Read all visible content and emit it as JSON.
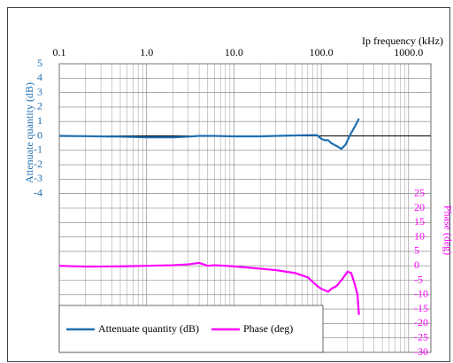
{
  "chart_data": {
    "type": "line",
    "x_label": "Ip  frequency (kHz)",
    "y_label": "Attenuate quantity (dB)",
    "y2_label": "Phase (deg)",
    "x_scale": "log",
    "xlim": [
      0.1,
      1800
    ],
    "xticks": [
      0.1,
      {
        "value": 1,
        "label": "1.0"
      },
      {
        "value": 10,
        "label": "10.0"
      },
      {
        "value": 100,
        "label": "100.0"
      },
      {
        "value": 1000,
        "label": "1000.0"
      }
    ],
    "xminorticks": [
      0.2,
      0.3,
      0.4,
      0.5,
      0.6,
      0.7,
      0.8,
      0.9,
      2,
      3,
      4,
      5,
      6,
      7,
      8,
      9,
      20,
      30,
      40,
      50,
      60,
      70,
      80,
      90,
      200,
      300,
      400,
      500,
      600,
      700,
      800,
      900
    ],
    "ylim": [
      -15,
      5
    ],
    "yticks": [
      5,
      4,
      3,
      2,
      1,
      0,
      -1,
      -2,
      -3,
      -4
    ],
    "y2lim": [
      -30,
      70
    ],
    "y2ticks": [
      25,
      20,
      15,
      10,
      5,
      0,
      -5,
      -10,
      -15,
      -20,
      -25,
      -30
    ],
    "grid": true,
    "legend": "lower left",
    "x": [
      0.1,
      0.2,
      0.5,
      1,
      2,
      3,
      4,
      5,
      6,
      8,
      10,
      20,
      30,
      50,
      70,
      90,
      100,
      110,
      120,
      130,
      150,
      170,
      190,
      200,
      220,
      240,
      260,
      270
    ],
    "series": [
      {
        "name": "Attenuate quantity (dB)",
        "color": "#1f6fb0",
        "axis": "y",
        "values": [
          0,
          -0.02,
          -0.05,
          -0.1,
          -0.1,
          -0.05,
          0,
          0,
          0,
          -0.02,
          -0.03,
          -0.03,
          0,
          0.03,
          0.05,
          0.05,
          -0.2,
          -0.3,
          -0.3,
          -0.5,
          -0.7,
          -0.9,
          -0.6,
          -0.3,
          0.2,
          0.6,
          1.0,
          1.2
        ]
      },
      {
        "name": "Phase (deg)",
        "color": "#ff00ff",
        "axis": "y2",
        "values": [
          0,
          -0.3,
          -0.2,
          0,
          0.2,
          0.5,
          1,
          0,
          0.2,
          0,
          -0.2,
          -1,
          -1.5,
          -2.5,
          -4,
          -7,
          -8,
          -8.5,
          -9,
          -8,
          -7,
          -5,
          -3,
          -2,
          -2.5,
          -6,
          -10,
          -17
        ]
      }
    ]
  }
}
